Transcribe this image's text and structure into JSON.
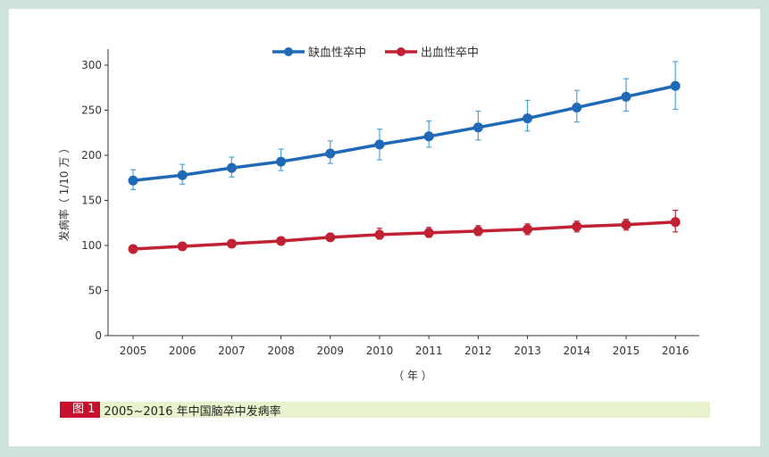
{
  "caption": {
    "figure_label": "图 1",
    "text": "2005~2016 年中国脑卒中发病率"
  },
  "colors": {
    "background": "#cfe3de",
    "ischemic": "#1f69b7",
    "ischemic_error": "#4aa3df",
    "hemorrhagic": "#c02234",
    "caption_bg": "#e8f2cd",
    "badge_bg": "#c8102e"
  },
  "chart_data": {
    "type": "line",
    "title": "",
    "xlabel": "（ 年 ）",
    "ylabel": "发病率（ 1/10 万 ）",
    "categories": [
      "2005",
      "2006",
      "2007",
      "2008",
      "2009",
      "2010",
      "2011",
      "2012",
      "2013",
      "2014",
      "2015",
      "2016"
    ],
    "ylim": [
      0,
      320
    ],
    "yticks": [
      0,
      50,
      100,
      150,
      200,
      250,
      300
    ],
    "grid": false,
    "legend_position": "top",
    "series": [
      {
        "name": "缺血性卒中",
        "color": "#1f69b7",
        "values": [
          172,
          178,
          186,
          193,
          202,
          212,
          221,
          231,
          241,
          253,
          265,
          277
        ],
        "error_low": [
          162,
          168,
          176,
          183,
          191,
          195,
          209,
          217,
          227,
          237,
          249,
          251
        ],
        "error_high": [
          184,
          190,
          198,
          207,
          216,
          229,
          238,
          249,
          261,
          272,
          285,
          304
        ]
      },
      {
        "name": "出血性卒中",
        "color": "#c02234",
        "values": [
          96,
          99,
          102,
          105,
          109,
          112,
          114,
          116,
          118,
          121,
          123,
          126
        ],
        "error_low": [
          93,
          96,
          99,
          102,
          105,
          107,
          109,
          111,
          112,
          115,
          117,
          115
        ],
        "error_high": [
          99,
          103,
          106,
          109,
          113,
          119,
          120,
          122,
          124,
          127,
          129,
          139
        ]
      }
    ]
  }
}
